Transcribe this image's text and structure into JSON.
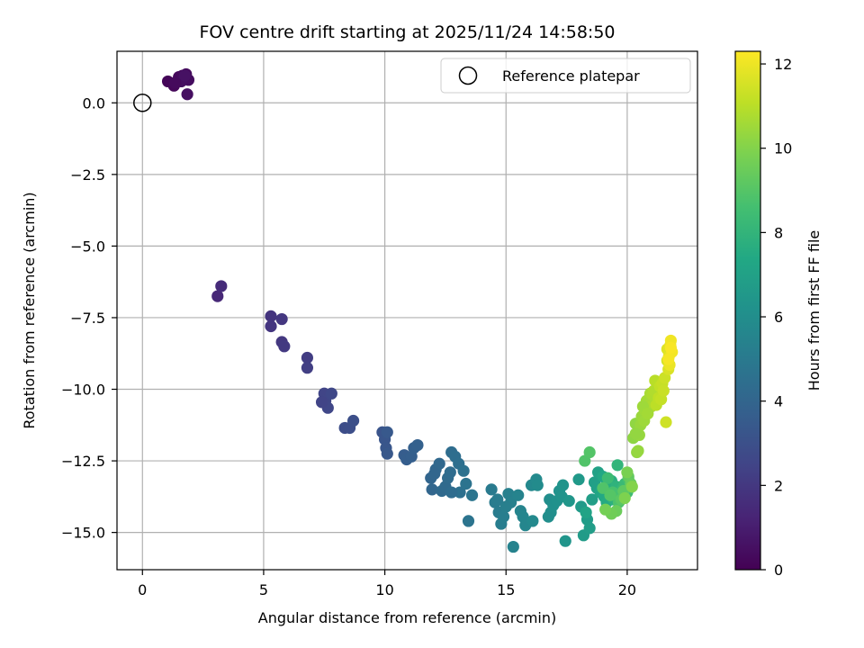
{
  "chart_data": {
    "type": "scatter",
    "title": "FOV centre drift starting at 2025/11/24 14:58:50",
    "xlabel": "Angular distance from reference (arcmin)",
    "ylabel": "Rotation from reference (arcmin)",
    "xlim": [
      -1.05,
      22.9
    ],
    "ylim": [
      -16.3,
      1.8
    ],
    "xticks": [
      0,
      5,
      10,
      15,
      20
    ],
    "yticks": [
      0.0,
      -2.5,
      -5.0,
      -7.5,
      -10.0,
      -12.5,
      -15.0
    ],
    "xtick_labels": [
      "0",
      "5",
      "10",
      "15",
      "20"
    ],
    "ytick_labels": [
      "0.0",
      "−2.5",
      "−5.0",
      "−7.5",
      "−10.0",
      "−12.5",
      "−15.0"
    ],
    "grid": true,
    "legend": {
      "position": "top-right",
      "label": "Reference platepar"
    },
    "reference_point": {
      "x": 0.0,
      "y": 0.0
    },
    "colorbar": {
      "label": "Hours from first FF file",
      "colormap": "viridis",
      "range": [
        0,
        12.3
      ],
      "ticks": [
        0,
        2,
        4,
        6,
        8,
        10,
        12
      ],
      "tick_labels": [
        "0",
        "2",
        "4",
        "6",
        "8",
        "10",
        "12"
      ]
    },
    "points": [
      [
        1.05,
        0.75,
        0.15
      ],
      [
        1.3,
        0.6,
        0.2
      ],
      [
        1.5,
        0.9,
        0.25
      ],
      [
        1.65,
        0.95,
        0.3
      ],
      [
        1.8,
        1.0,
        0.35
      ],
      [
        1.9,
        0.8,
        0.4
      ],
      [
        1.6,
        0.75,
        0.45
      ],
      [
        1.85,
        0.3,
        0.5
      ],
      [
        1.75,
        0.95,
        0.55
      ],
      [
        1.35,
        0.7,
        0.3
      ],
      [
        3.1,
        -6.75,
        1.4
      ],
      [
        3.25,
        -6.4,
        1.5
      ],
      [
        5.3,
        -7.45,
        1.85
      ],
      [
        5.3,
        -7.8,
        1.9
      ],
      [
        5.75,
        -7.55,
        1.95
      ],
      [
        5.75,
        -8.35,
        2.0
      ],
      [
        5.85,
        -8.5,
        2.05
      ],
      [
        6.8,
        -8.9,
        2.2
      ],
      [
        6.8,
        -9.25,
        2.25
      ],
      [
        7.5,
        -10.15,
        2.5
      ],
      [
        7.55,
        -10.4,
        2.55
      ],
      [
        7.65,
        -10.65,
        2.6
      ],
      [
        7.4,
        -10.45,
        2.45
      ],
      [
        7.8,
        -10.15,
        2.65
      ],
      [
        8.35,
        -11.35,
        2.85
      ],
      [
        8.55,
        -11.35,
        2.9
      ],
      [
        8.7,
        -11.1,
        2.95
      ],
      [
        9.9,
        -11.5,
        3.2
      ],
      [
        10.0,
        -11.75,
        3.25
      ],
      [
        10.05,
        -12.05,
        3.3
      ],
      [
        10.1,
        -12.25,
        3.35
      ],
      [
        10.1,
        -11.5,
        3.4
      ],
      [
        10.8,
        -12.3,
        3.6
      ],
      [
        10.9,
        -12.45,
        3.65
      ],
      [
        11.1,
        -12.35,
        3.7
      ],
      [
        11.2,
        -12.05,
        3.75
      ],
      [
        11.35,
        -11.95,
        3.8
      ],
      [
        11.9,
        -13.1,
        4.0
      ],
      [
        11.95,
        -13.5,
        4.05
      ],
      [
        12.1,
        -12.8,
        4.1
      ],
      [
        12.25,
        -12.6,
        4.15
      ],
      [
        12.35,
        -13.55,
        4.2
      ],
      [
        12.5,
        -13.4,
        4.25
      ],
      [
        12.6,
        -13.1,
        4.3
      ],
      [
        12.7,
        -12.9,
        4.35
      ],
      [
        12.75,
        -12.2,
        4.4
      ],
      [
        12.9,
        -12.35,
        4.45
      ],
      [
        13.05,
        -12.6,
        4.5
      ],
      [
        13.1,
        -13.6,
        4.55
      ],
      [
        13.25,
        -12.85,
        4.6
      ],
      [
        13.35,
        -13.3,
        4.65
      ],
      [
        13.45,
        -14.6,
        4.7
      ],
      [
        13.6,
        -13.7,
        4.75
      ],
      [
        12.05,
        -12.95,
        4.05
      ],
      [
        12.75,
        -13.6,
        4.35
      ],
      [
        14.4,
        -13.5,
        5.0
      ],
      [
        14.55,
        -13.95,
        5.05
      ],
      [
        14.7,
        -14.3,
        5.1
      ],
      [
        14.8,
        -14.7,
        5.15
      ],
      [
        14.9,
        -14.45,
        5.2
      ],
      [
        15.1,
        -13.65,
        5.3
      ],
      [
        15.2,
        -13.95,
        5.35
      ],
      [
        15.3,
        -15.5,
        5.4
      ],
      [
        15.5,
        -13.7,
        5.45
      ],
      [
        15.6,
        -14.25,
        5.5
      ],
      [
        15.7,
        -14.45,
        5.55
      ],
      [
        15.8,
        -14.75,
        5.6
      ],
      [
        16.05,
        -13.35,
        5.7
      ],
      [
        16.1,
        -14.6,
        5.75
      ],
      [
        16.25,
        -13.15,
        5.8
      ],
      [
        16.3,
        -13.35,
        5.85
      ],
      [
        15.0,
        -14.1,
        5.25
      ],
      [
        14.65,
        -13.85,
        5.1
      ],
      [
        16.8,
        -13.85,
        6.0
      ],
      [
        16.85,
        -14.3,
        6.05
      ],
      [
        16.95,
        -14.05,
        6.1
      ],
      [
        17.1,
        -13.9,
        6.15
      ],
      [
        17.2,
        -13.55,
        6.2
      ],
      [
        17.3,
        -13.75,
        6.25
      ],
      [
        17.35,
        -13.35,
        6.3
      ],
      [
        17.45,
        -15.3,
        6.35
      ],
      [
        17.6,
        -13.9,
        6.4
      ],
      [
        16.75,
        -14.45,
        6.0
      ],
      [
        18.0,
        -13.15,
        6.6
      ],
      [
        18.1,
        -14.1,
        6.65
      ],
      [
        18.2,
        -15.1,
        6.7
      ],
      [
        18.35,
        -14.55,
        6.75
      ],
      [
        18.45,
        -14.85,
        6.8
      ],
      [
        18.55,
        -13.85,
        6.85
      ],
      [
        18.65,
        -13.25,
        6.9
      ],
      [
        18.75,
        -13.45,
        6.95
      ],
      [
        18.8,
        -12.9,
        7.0
      ],
      [
        18.3,
        -14.3,
        7.1
      ],
      [
        18.9,
        -13.6,
        7.2
      ],
      [
        19.0,
        -13.05,
        7.3
      ],
      [
        19.05,
        -13.75,
        7.4
      ],
      [
        19.15,
        -13.95,
        7.5
      ],
      [
        19.25,
        -13.55,
        7.6
      ],
      [
        19.35,
        -13.2,
        7.7
      ],
      [
        19.45,
        -13.85,
        7.8
      ],
      [
        19.55,
        -13.4,
        7.9
      ],
      [
        19.6,
        -12.65,
        8.0
      ],
      [
        19.7,
        -13.75,
        8.1
      ],
      [
        19.8,
        -13.5,
        8.2
      ],
      [
        19.9,
        -13.3,
        8.3
      ],
      [
        20.0,
        -13.6,
        8.4
      ],
      [
        20.05,
        -13.15,
        8.5
      ],
      [
        20.1,
        -13.45,
        8.6
      ],
      [
        19.2,
        -13.1,
        8.4
      ],
      [
        19.4,
        -13.6,
        8.7
      ],
      [
        19.65,
        -13.95,
        8.8
      ],
      [
        19.0,
        -13.45,
        8.9
      ],
      [
        19.3,
        -13.7,
        9.0
      ],
      [
        18.25,
        -12.5,
        8.9
      ],
      [
        18.45,
        -12.2,
        8.95
      ],
      [
        19.75,
        -13.85,
        9.1
      ],
      [
        19.85,
        -13.55,
        9.2
      ],
      [
        20.05,
        -13.05,
        9.3
      ],
      [
        20.15,
        -13.3,
        9.4
      ],
      [
        19.55,
        -14.25,
        9.5
      ],
      [
        19.35,
        -14.35,
        9.6
      ],
      [
        19.1,
        -14.2,
        9.7
      ],
      [
        20.0,
        -12.9,
        9.8
      ],
      [
        19.9,
        -13.8,
        9.9
      ],
      [
        20.2,
        -13.4,
        10.0
      ],
      [
        20.25,
        -11.7,
        10.2
      ],
      [
        20.35,
        -11.2,
        10.25
      ],
      [
        20.4,
        -12.2,
        10.3
      ],
      [
        20.5,
        -11.6,
        10.35
      ],
      [
        20.55,
        -11.25,
        10.4
      ],
      [
        20.6,
        -10.95,
        10.45
      ],
      [
        20.7,
        -11.1,
        10.5
      ],
      [
        20.75,
        -10.75,
        10.55
      ],
      [
        20.8,
        -10.4,
        10.6
      ],
      [
        20.9,
        -10.55,
        10.65
      ],
      [
        20.95,
        -10.15,
        10.7
      ],
      [
        21.0,
        -10.6,
        10.75
      ],
      [
        21.05,
        -10.2,
        10.8
      ],
      [
        21.1,
        -10.05,
        10.85
      ],
      [
        20.65,
        -10.6,
        10.5
      ],
      [
        20.35,
        -11.55,
        10.3
      ],
      [
        20.45,
        -12.15,
        10.35
      ],
      [
        20.85,
        -10.85,
        10.6
      ],
      [
        21.15,
        -9.7,
        11.0
      ],
      [
        21.2,
        -10.55,
        11.05
      ],
      [
        21.3,
        -10.3,
        11.1
      ],
      [
        21.35,
        -9.9,
        11.15
      ],
      [
        21.4,
        -10.35,
        11.2
      ],
      [
        21.45,
        -9.8,
        11.25
      ],
      [
        21.5,
        -10.05,
        11.3
      ],
      [
        21.55,
        -9.6,
        11.35
      ],
      [
        21.6,
        -11.15,
        11.4
      ],
      [
        21.65,
        -9.0,
        11.5
      ],
      [
        21.7,
        -9.3,
        11.6
      ],
      [
        21.65,
        -8.6,
        11.7
      ],
      [
        21.72,
        -8.85,
        11.8
      ],
      [
        21.78,
        -8.45,
        11.9
      ],
      [
        21.75,
        -9.15,
        11.95
      ],
      [
        21.8,
        -8.3,
        12.05
      ],
      [
        21.85,
        -8.7,
        12.1
      ],
      [
        21.7,
        -8.95,
        12.15
      ],
      [
        21.8,
        -8.55,
        12.2
      ]
    ]
  }
}
